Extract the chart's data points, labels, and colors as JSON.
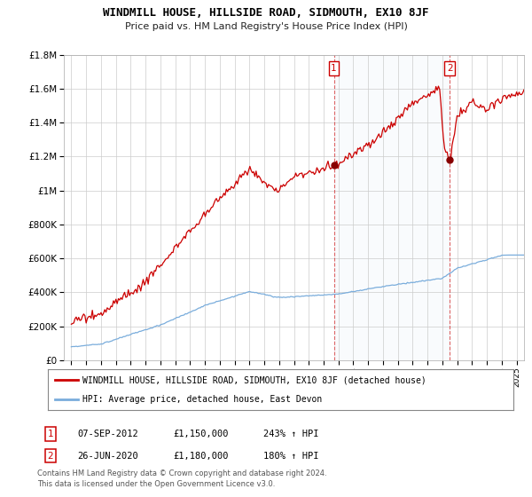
{
  "title": "WINDMILL HOUSE, HILLSIDE ROAD, SIDMOUTH, EX10 8JF",
  "subtitle": "Price paid vs. HM Land Registry's House Price Index (HPI)",
  "legend_line1": "WINDMILL HOUSE, HILLSIDE ROAD, SIDMOUTH, EX10 8JF (detached house)",
  "legend_line2": "HPI: Average price, detached house, East Devon",
  "sale1_date": "07-SEP-2012",
  "sale1_price": 1150000,
  "sale1_pct": "243%",
  "sale1_year": 2012.69,
  "sale2_date": "26-JUN-2020",
  "sale2_price": 1180000,
  "sale2_pct": "180%",
  "sale2_year": 2020.49,
  "footnote1": "Contains HM Land Registry data © Crown copyright and database right 2024.",
  "footnote2": "This data is licensed under the Open Government Licence v3.0.",
  "red_color": "#cc0000",
  "blue_color": "#7aaddc",
  "vline_color": "#cc0000",
  "background_color": "#ffffff",
  "grid_color": "#cccccc",
  "ylim": [
    0,
    1800000
  ],
  "xlim_start": 1994.5,
  "xlim_end": 2025.5
}
